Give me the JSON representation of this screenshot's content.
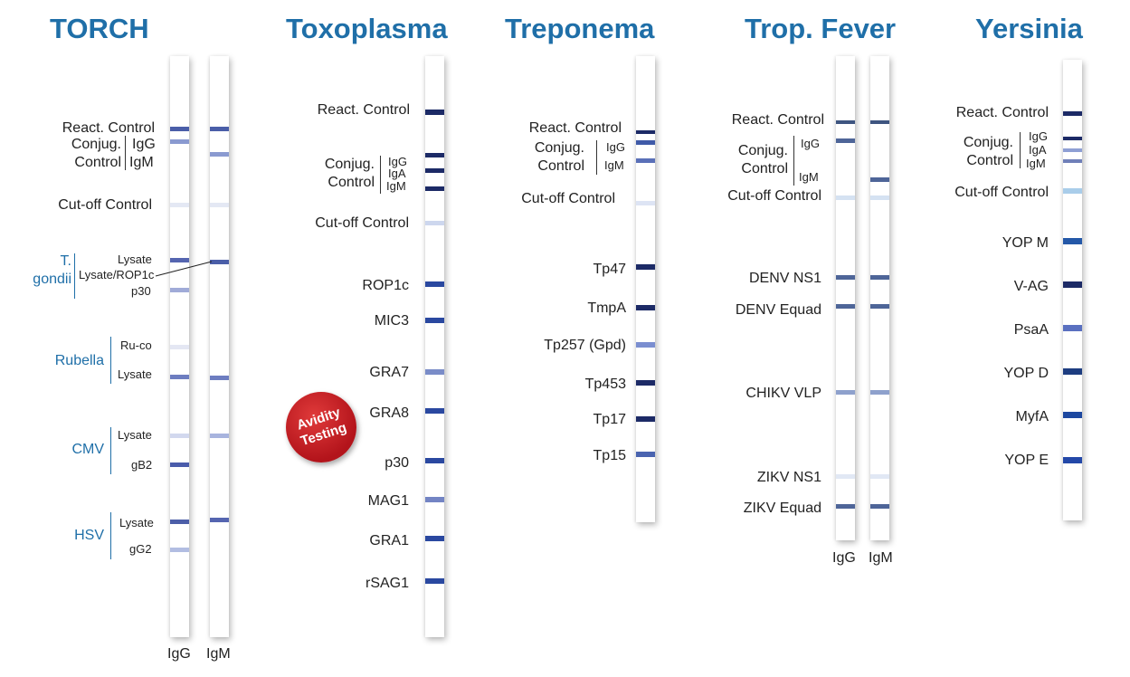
{
  "panels": {
    "torch": {
      "title": "TORCH",
      "strip_labels": [
        "IgG",
        "IgM"
      ],
      "labels": {
        "react_control": "React. Control",
        "conjug": "Conjug.",
        "control": "Control",
        "igg": "IgG",
        "igm": "IgM",
        "cutoff": "Cut-off Control",
        "t_gondii_1": "T.",
        "t_gondii_2": "gondii",
        "lysate": "Lysate",
        "lysate_rop1c": "Lysate/ROP1c",
        "p30": "p30",
        "rubella": "Rubella",
        "ru_co": "Ru-co",
        "cmv": "CMV",
        "gb2": "gB2",
        "hsv": "HSV",
        "gg2": "gG2"
      }
    },
    "toxoplasma": {
      "title": "Toxoplasma",
      "labels": {
        "react_control": "React. Control",
        "conjug": "Conjug.",
        "control": "Control",
        "igg": "IgG",
        "iga": "IgA",
        "igm": "IgM",
        "cutoff": "Cut-off Control",
        "rop1c": "ROP1c",
        "mic3": "MIC3",
        "gra7": "GRA7",
        "gra8": "GRA8",
        "p30": "p30",
        "mag1": "MAG1",
        "gra1": "GRA1",
        "rsag1": "rSAG1"
      },
      "badge": "Avidity\nTesting"
    },
    "treponema": {
      "title": "Treponema",
      "labels": {
        "react_control": "React. Control",
        "conjug": "Conjug.",
        "control": "Control",
        "igg": "IgG",
        "igm": "IgM",
        "cutoff": "Cut-off Control",
        "tp47": "Tp47",
        "tmpa": "TmpA",
        "tp257": "Tp257 (Gpd)",
        "tp453": "Tp453",
        "tp17": "Tp17",
        "tp15": "Tp15"
      }
    },
    "trop_fever": {
      "title": "Trop. Fever",
      "strip_labels": [
        "IgG",
        "IgM"
      ],
      "labels": {
        "react_control": "React. Control",
        "conjug": "Conjug.",
        "control": "Control",
        "igg": "IgG",
        "igm": "IgM",
        "cutoff": "Cut-off Control",
        "denv_ns1": "DENV NS1",
        "denv_equad": "DENV Equad",
        "chikv_vlp": "CHIKV VLP",
        "zikv_ns1": "ZIKV NS1",
        "zikv_equad": "ZIKV Equad"
      }
    },
    "yersinia": {
      "title": "Yersinia",
      "labels": {
        "react_control": "React. Control",
        "conjug": "Conjug.",
        "control": "Control",
        "igg": "IgG",
        "iga": "IgA",
        "igm": "IgM",
        "cutoff": "Cut-off Control",
        "yop_m": "YOP M",
        "v_ag": "V-AG",
        "psaa": "PsaA",
        "yop_d": "YOP D",
        "myfa": "MyfA",
        "yop_e": "YOP E"
      }
    }
  },
  "colors": {
    "title": "#1f6fa8",
    "band_dark": "#1c2a66",
    "band_mid": "#3f5aa8",
    "band_light": "#8e9fd4",
    "band_pale": "#e1e6f5",
    "badge": "#c1161c"
  }
}
